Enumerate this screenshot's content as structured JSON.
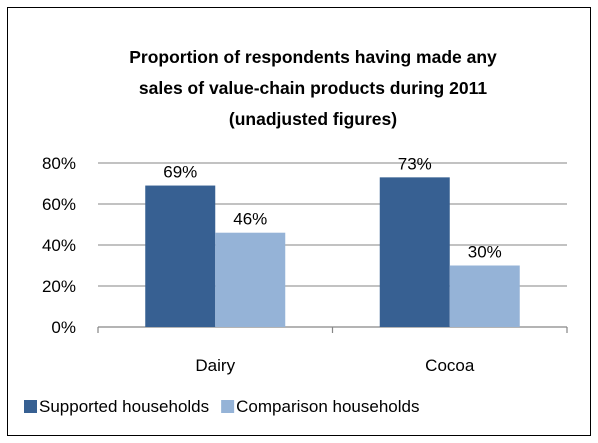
{
  "chart_data": {
    "type": "bar",
    "title": "Proportion of respondents having made any sales of value-chain products during 2011 (unadjusted figures)",
    "title_lines": [
      "Proportion of respondents having made any",
      "sales of value-chain products during 2011",
      "(unadjusted figures)"
    ],
    "categories": [
      "Dairy",
      "Cocoa"
    ],
    "series": [
      {
        "name": "Supported households",
        "values": [
          69,
          73
        ],
        "labels": [
          "69%",
          "73%"
        ],
        "color": "#376092"
      },
      {
        "name": "Comparison households",
        "values": [
          46,
          30
        ],
        "labels": [
          "46%",
          "30%"
        ],
        "color": "#95b3d7"
      }
    ],
    "ylim": [
      0,
      80
    ],
    "yticks": [
      0,
      20,
      40,
      60,
      80
    ],
    "ytick_labels": [
      "0%",
      "20%",
      "40%",
      "60%",
      "80%"
    ],
    "grid": true,
    "legend_position": "bottom"
  }
}
